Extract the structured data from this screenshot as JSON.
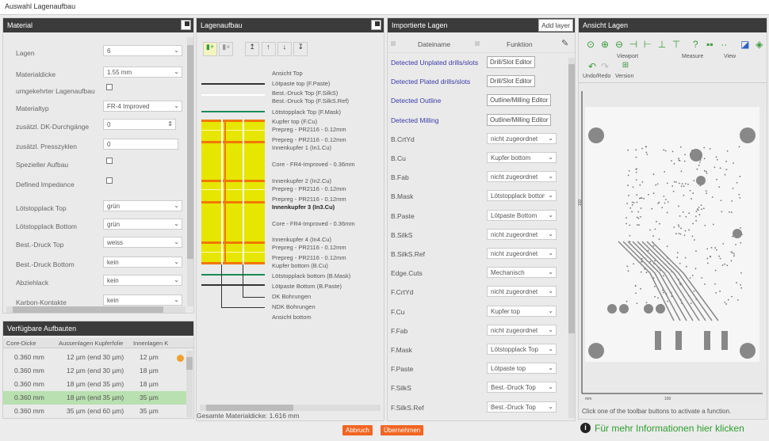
{
  "window": {
    "title": "Auswahl Lagenaufbau"
  },
  "material": {
    "title": "Material",
    "fields": [
      {
        "label": "Lagen",
        "type": "select",
        "value": "6"
      },
      {
        "label": "Materialdicke",
        "type": "select",
        "value": "1.55 mm"
      },
      {
        "label": "umgekehrter Lagenaufbau",
        "type": "checkbox",
        "checked": false
      },
      {
        "label": "Materialtyp",
        "type": "select",
        "value": "FR-4 Improved"
      },
      {
        "label": "zusätzl. DK-Durchgänge",
        "type": "spinner",
        "value": "0"
      },
      {
        "label": "zusätzl. Presszyklen",
        "type": "input",
        "value": "0"
      },
      {
        "label": "Spezieller Aufbau",
        "type": "checkbox",
        "checked": false
      },
      {
        "label": "Defined Impedance",
        "type": "checkbox",
        "checked": false
      },
      {
        "label": "Lötstopplack Top",
        "type": "select",
        "value": "grün"
      },
      {
        "label": "Lötstopplack Bottom",
        "type": "select",
        "value": "grün"
      },
      {
        "label": "Best.-Druck Top",
        "type": "select",
        "value": "weiss"
      },
      {
        "label": "Best.-Druck Bottom",
        "type": "select",
        "value": "kein"
      },
      {
        "label": "Abziehlack",
        "type": "select",
        "value": "kein"
      },
      {
        "label": "Karbon-Kontakte",
        "type": "select",
        "value": "kein"
      }
    ]
  },
  "aufbauten": {
    "title": "Verfügbare Aufbauten",
    "columns": [
      "Core-Dicke",
      "Aussenlagen Kupferfolie",
      "Innenlagen K"
    ],
    "rows": [
      [
        "0.360 mm",
        "12 µm (end 30 µm)",
        "12 µm"
      ],
      [
        "0.360 mm",
        "12 µm (end 30 µm)",
        "18 µm"
      ],
      [
        "0.360 mm",
        "18 µm (end 35 µm)",
        "18 µm"
      ],
      [
        "0.360 mm",
        "18 µm (end 35 µm)",
        "35 µm"
      ],
      [
        "0.360 mm",
        "35 µm (end 60 µm)",
        "35 µm"
      ]
    ],
    "selected_row": 3
  },
  "lagenaufbau": {
    "title": "Lagenaufbau",
    "layers": [
      "Ansicht Top",
      "Lötpaste top (F.Paste)",
      "Best.-Druck Top (F.SilkS)",
      "Best.-Druck Top (F.SilkS.Ref)",
      "Lötstopplack Top (F.Mask)",
      "Kupfer top (F.Cu)",
      "Prepreg - PR2116 - 0.12mm",
      "Prepreg - PR2116 - 0.12mm",
      "Innenkupfer 1 (In1.Cu)",
      "Core - FR4-Improved - 0.36mm",
      "Innenkupfer 2 (In2.Cu)",
      "Prepreg - PR2116 - 0.12mm",
      "Prepreg - PR2116 - 0.12mm",
      "Innenkupfer 3 (In3.Cu)",
      "Core - FR4-Improved - 0.36mm",
      "Innenkupfer 4 (In4.Cu)",
      "Prepreg - PR2116 - 0.12mm",
      "Prepreg - PR2116 - 0.12mm",
      "Kupfer bottom (B.Cu)",
      "Lötstopplack bottom (B.Mask)",
      "Lötpaste Bottom (B.Paste)",
      "DK Bohrungen",
      "NDK Bohrungen",
      "Ansicht bottom"
    ],
    "bold_layer": 13,
    "total": "Gesamte Materialdicke: 1.616 mm"
  },
  "importiert": {
    "title": "Importierte Lagen",
    "add_layer": "Add layer",
    "col_file": "Dateiname",
    "col_func": "Funktion",
    "rows": [
      {
        "name": "Detected Unplated drills/slots",
        "func": "Drill/Slot Editor",
        "kind": "button"
      },
      {
        "name": "Detected Plated drills/slots",
        "func": "Drill/Slot Editor",
        "kind": "button"
      },
      {
        "name": "Detected Outline",
        "func": "Outline/Milling Editor",
        "kind": "button"
      },
      {
        "name": "Detected Milling",
        "func": "Outline/Milling Editor",
        "kind": "button"
      },
      {
        "name": "B.CrtYd",
        "func": "nicht zugeordnet",
        "kind": "select"
      },
      {
        "name": "B.Cu",
        "func": "Kupfer bottom",
        "kind": "select"
      },
      {
        "name": "B.Fab",
        "func": "nicht zugeordnet",
        "kind": "select"
      },
      {
        "name": "B.Mask",
        "func": "Lötstopplack bottom",
        "kind": "select"
      },
      {
        "name": "B.Paste",
        "func": "Lötpaste Bottom",
        "kind": "select"
      },
      {
        "name": "B.SilkS",
        "func": "nicht zugeordnet",
        "kind": "select"
      },
      {
        "name": "B.SilkS.Ref",
        "func": "nicht zugeordnet",
        "kind": "select"
      },
      {
        "name": "Edge.Cuts",
        "func": "Mechanisch",
        "kind": "select"
      },
      {
        "name": "F.CrtYd",
        "func": "nicht zugeordnet",
        "kind": "select"
      },
      {
        "name": "F.Cu",
        "func": "Kupfer top",
        "kind": "select"
      },
      {
        "name": "F.Fab",
        "func": "nicht zugeordnet",
        "kind": "select"
      },
      {
        "name": "F.Mask",
        "func": "Lötstopplack Top",
        "kind": "select"
      },
      {
        "name": "F.Paste",
        "func": "Lötpaste top",
        "kind": "select"
      },
      {
        "name": "F.SilkS",
        "func": "Best.-Druck Top",
        "kind": "select"
      },
      {
        "name": "F.SilkS.Ref",
        "func": "Best.-Druck Top",
        "kind": "select"
      }
    ]
  },
  "ansicht": {
    "title": "Ansicht Lagen",
    "groups": {
      "viewport": "Viewport",
      "measure": "Measure",
      "view": "View",
      "undo": "Undo/Redo",
      "version": "Version"
    },
    "axis_unit": "mm",
    "axis_x_tick": "150",
    "axis_y_tick": "100",
    "status": "Click one of the toolbar buttons to activate a function."
  },
  "footer": {
    "cancel": "Abbruch",
    "apply": "Übernehmen",
    "info": "Für mehr Informationen hier klicken"
  },
  "colors": {
    "header": "#3b3b3b",
    "accent": "#f26522",
    "link": "#3a3aa8",
    "info_green": "#2e9e2e",
    "selected_row": "#b9e0b0",
    "prepreg": "#e6e600",
    "copper": "#f07800"
  }
}
